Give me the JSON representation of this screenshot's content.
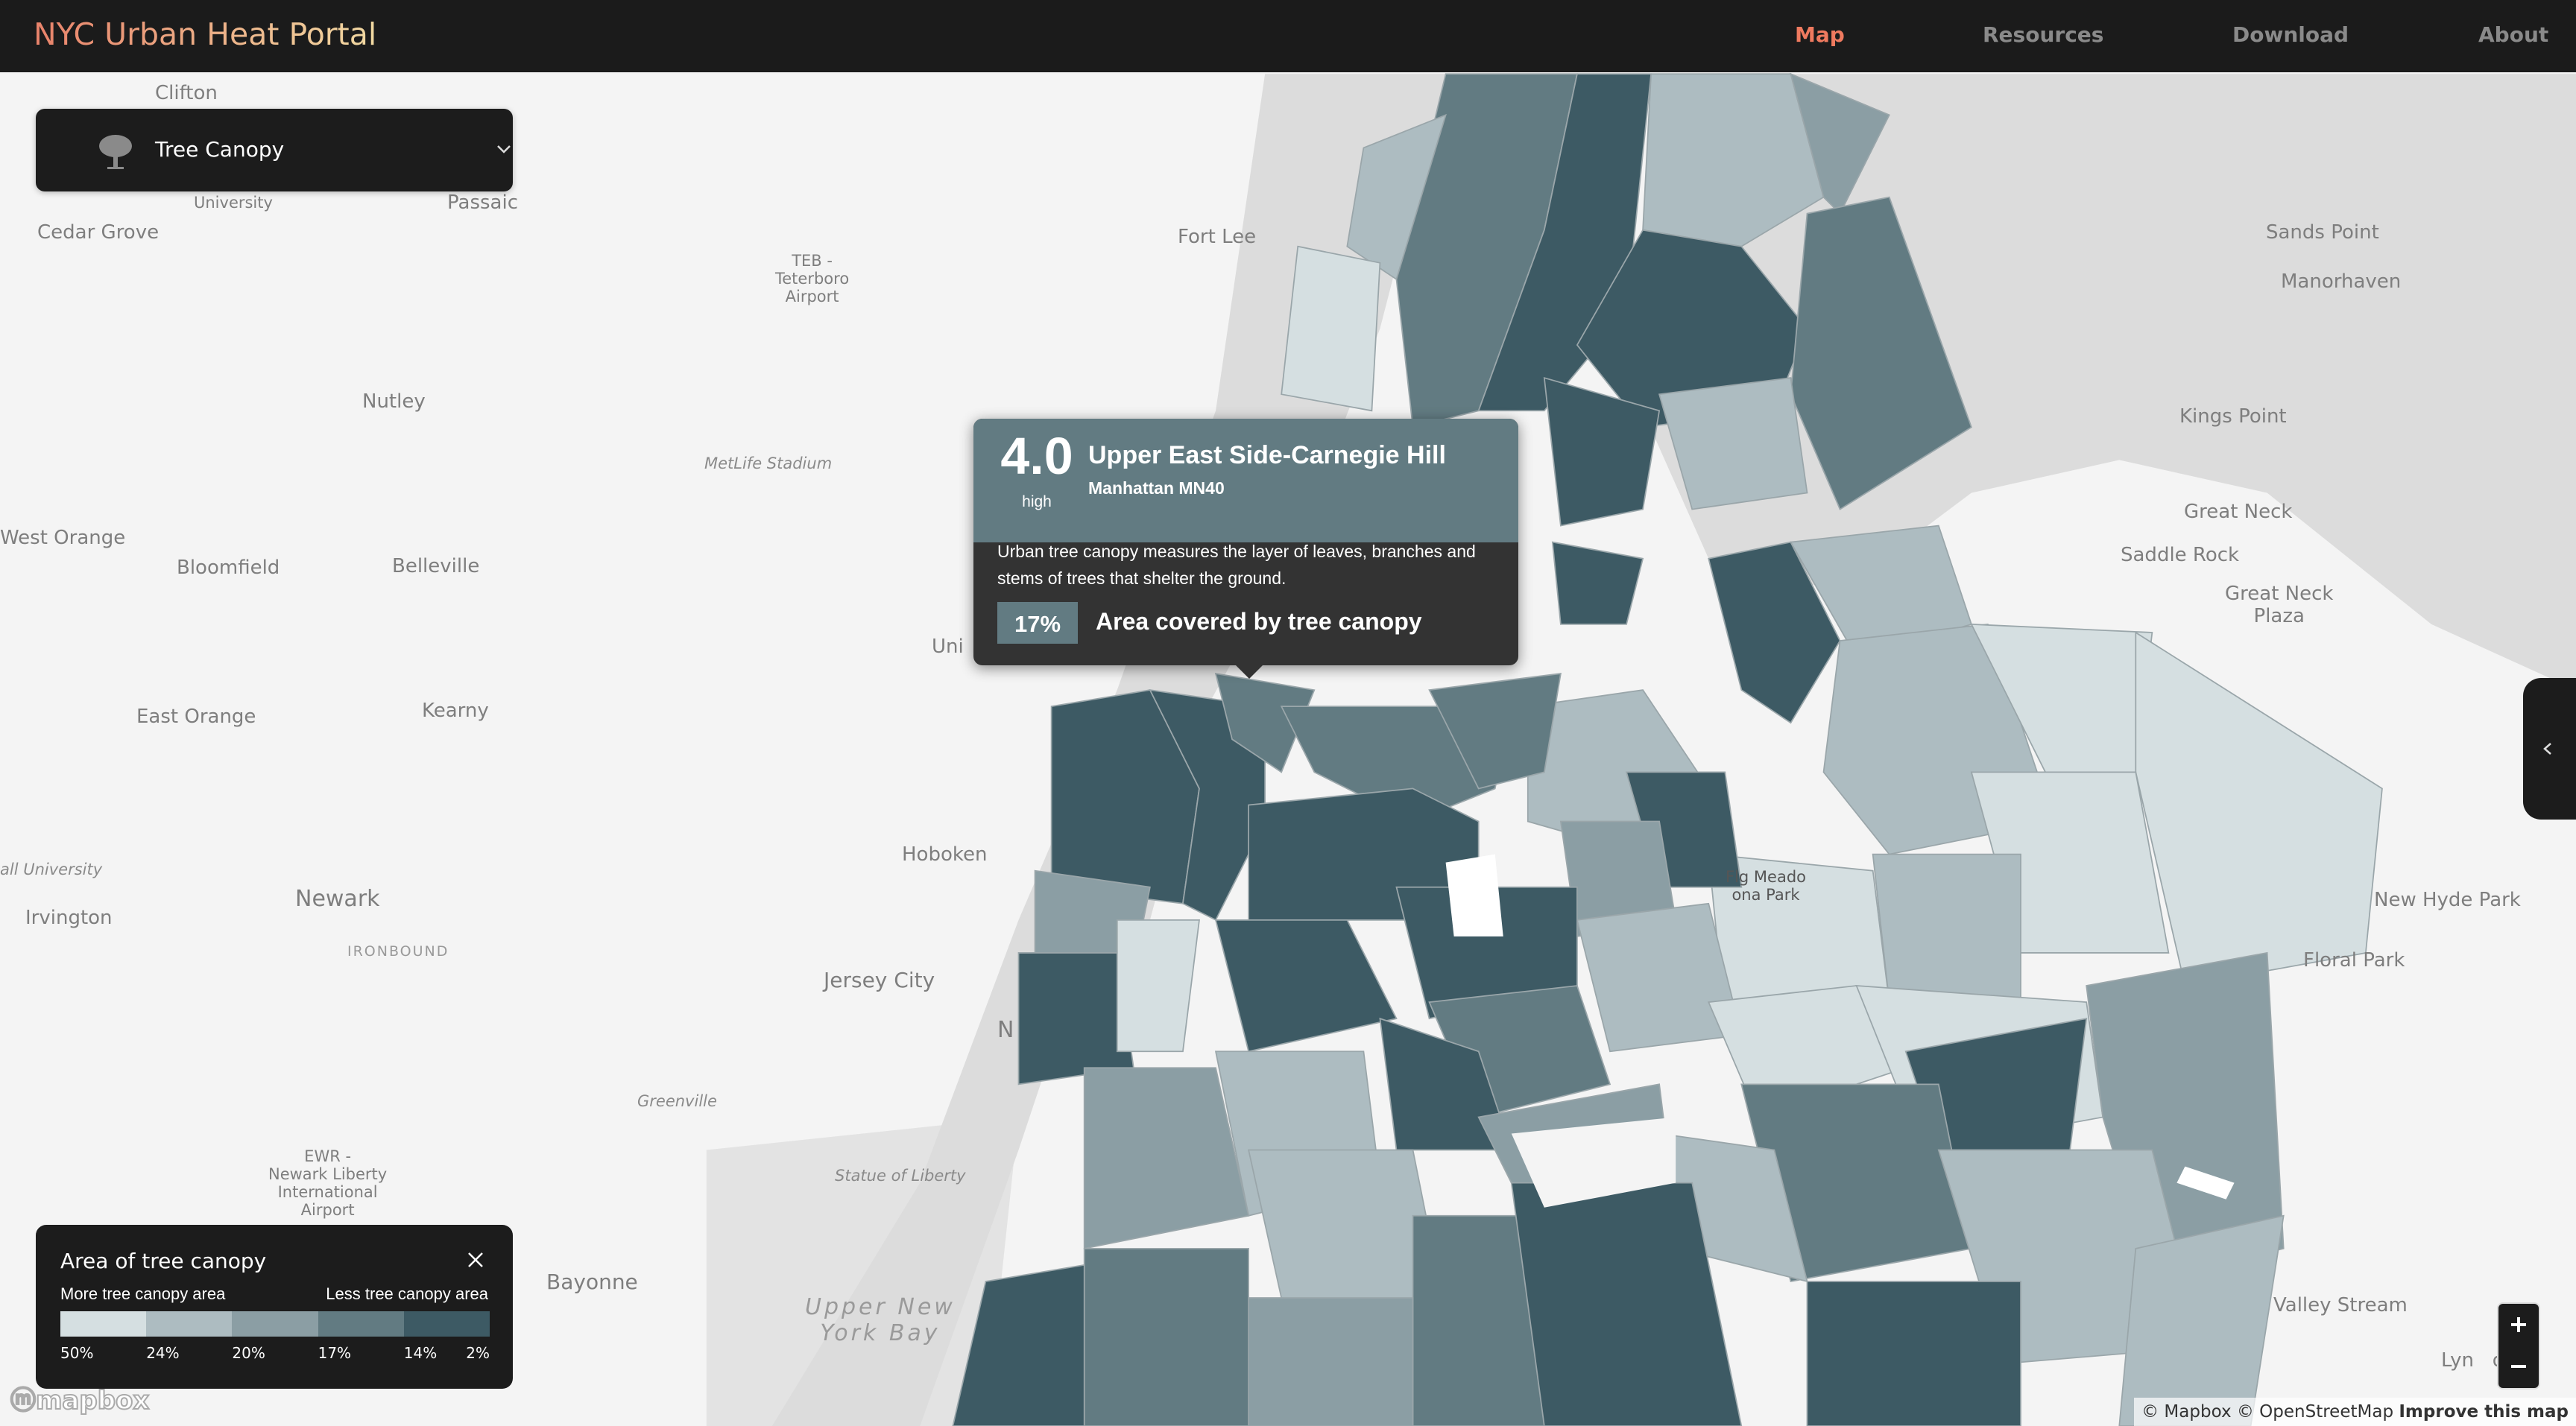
{
  "header": {
    "title": "NYC Urban Heat Portal",
    "nav": [
      {
        "label": "Map",
        "active": true
      },
      {
        "label": "Resources",
        "active": false
      },
      {
        "label": "Download",
        "active": false
      },
      {
        "label": "About",
        "active": false
      }
    ]
  },
  "layer_select": {
    "selected": "Tree Canopy",
    "icon": "tree-icon"
  },
  "tooltip": {
    "score": "4.0",
    "level": "high",
    "neighborhood": "Upper East Side-Carnegie Hill",
    "district": "Manhattan MN40",
    "description": "Urban tree canopy measures the layer of leaves, branches and stems of trees that shelter the ground.",
    "value": "17%",
    "metric": "Area covered by tree canopy"
  },
  "legend": {
    "title": "Area of tree canopy",
    "left_label": "More tree canopy area",
    "right_label": "Less tree canopy area",
    "colors": [
      "#d5dfe1",
      "#adbcc1",
      "#8b9ea4",
      "#627b82",
      "#3d5a64"
    ],
    "ticks": [
      "50%",
      "24%",
      "20%",
      "17%",
      "14%",
      "2%"
    ]
  },
  "map_labels": {
    "clifton": "Clifton",
    "passaic": "Passaic",
    "cedar_grove": "Cedar Grove",
    "university": "University",
    "teb": "TEB -\nTeterboro\nAirport",
    "fort_lee": "Fort Lee",
    "nutley": "Nutley",
    "metlife": "MetLife Stadium",
    "west_orange": "West Orange",
    "bloomfield": "Bloomfield",
    "belleville": "Belleville",
    "kearny": "Kearny",
    "east_orange": "East Orange",
    "union_city": "Uni",
    "hoboken": "Hoboken",
    "newark": "Newark",
    "irvington": "Irvington",
    "ironbound": "IRONBOUND",
    "all_university": "all University",
    "jersey_city": "Jersey City",
    "greenville": "Greenville",
    "ewr": "EWR -\nNewark Liberty\nInternational\nAirport",
    "statue": "Statue of Liberty",
    "bayonne": "Bayonne",
    "bay": "Upper New\nYork Bay",
    "sands_point": "Sands Point",
    "manorhaven": "Manorhaven",
    "kings_point": "Kings Point",
    "great_neck": "Great Neck",
    "saddle_rock": "Saddle Rock",
    "great_neck_plaza": "Great Neck\nPlaza",
    "new_hyde_park": "New Hyde Park",
    "floral_park": "Floral Park",
    "valley_stream": "Valley Stream",
    "lynbrook": "Lyn   ok",
    "flushing_meadow": "Flg Meado\nona Park",
    "n": "N"
  },
  "controls": {
    "zoom_in": "+",
    "zoom_out": "−",
    "panel_toggle": "‹"
  },
  "attribution": {
    "mapbox": "© Mapbox",
    "osm": "© OpenStreetMap",
    "improve": "Improve this map",
    "logo": "mapbox"
  }
}
